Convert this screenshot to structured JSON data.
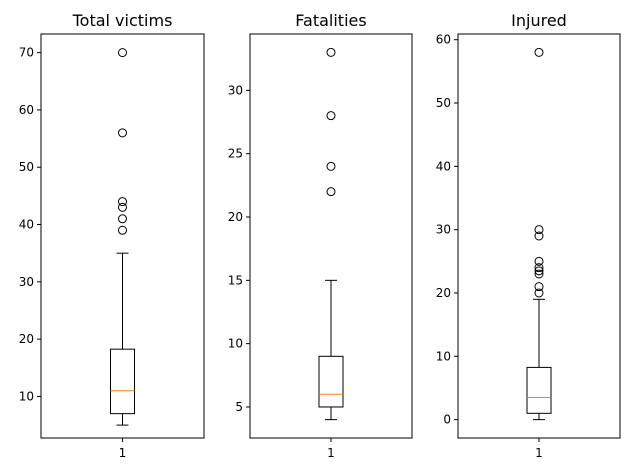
{
  "chart_data": [
    {
      "type": "box",
      "title": "Total victims",
      "xlabel": "",
      "ylabel": "",
      "categories": [
        "1"
      ],
      "ylim": [
        2.75,
        73.25
      ],
      "yticks": [
        10,
        20,
        30,
        40,
        50,
        60,
        70
      ],
      "box": {
        "whisker_low": 5,
        "q1": 7,
        "median": 11,
        "q3": 18.25,
        "whisker_high": 35,
        "outliers": [
          39,
          41,
          43,
          44,
          56,
          70
        ]
      },
      "grid": false,
      "colors": {
        "median": "#ff7f0e",
        "box": "#000000"
      }
    },
    {
      "type": "box",
      "title": "Fatalities",
      "xlabel": "",
      "ylabel": "",
      "categories": [
        "1"
      ],
      "ylim": [
        2.55,
        34.45
      ],
      "yticks": [
        5,
        10,
        15,
        20,
        25,
        30
      ],
      "box": {
        "whisker_low": 4,
        "q1": 5,
        "median": 6,
        "q3": 9,
        "whisker_high": 15,
        "outliers": [
          22,
          24,
          28,
          33
        ]
      },
      "grid": false,
      "colors": {
        "median": "#ff7f0e",
        "box": "#000000"
      }
    },
    {
      "type": "box",
      "title": "Injured",
      "xlabel": "",
      "ylabel": "",
      "categories": [
        "1"
      ],
      "ylim": [
        -2.9,
        60.9
      ],
      "yticks": [
        0,
        10,
        20,
        30,
        40,
        50,
        60
      ],
      "box": {
        "whisker_low": 0,
        "q1": 1,
        "median": 3.5,
        "q3": 8.25,
        "whisker_high": 19,
        "outliers": [
          20,
          21,
          23,
          23.5,
          24,
          25,
          29,
          30,
          58
        ]
      },
      "grid": false,
      "colors": {
        "median": "#ff7f0e",
        "box": "#000000"
      }
    }
  ]
}
